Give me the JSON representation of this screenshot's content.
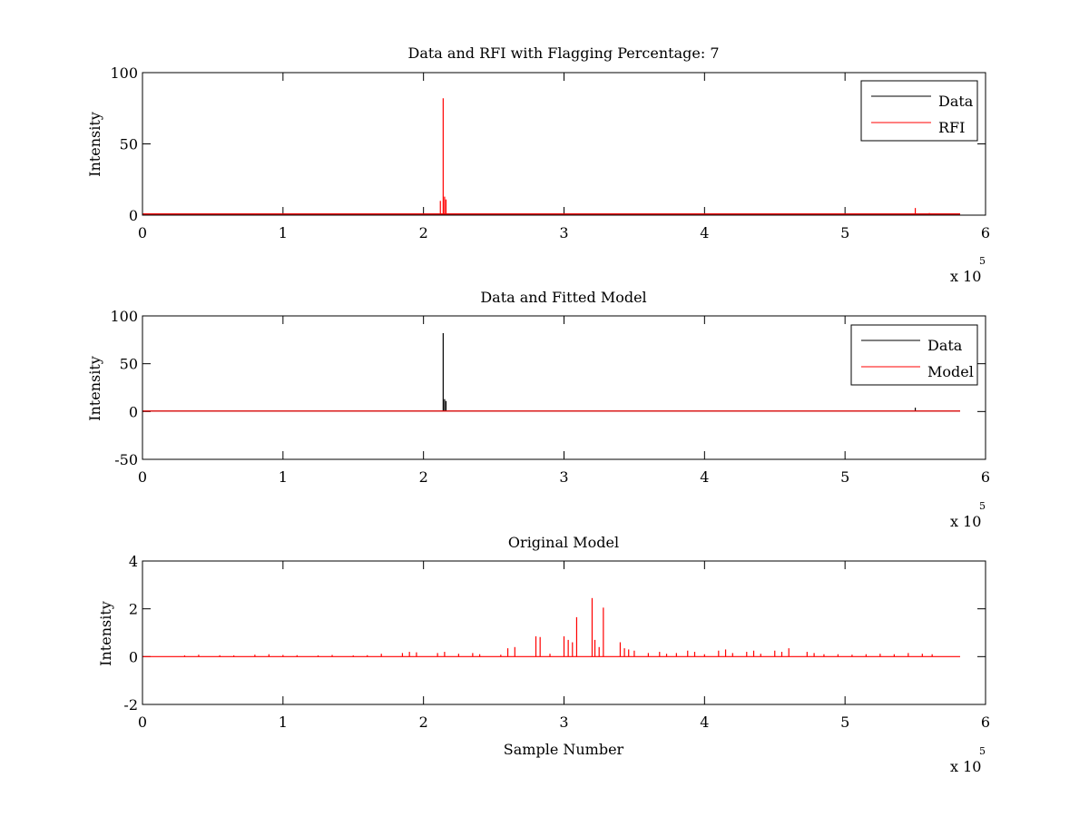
{
  "figure": {
    "background": "#ffffff"
  },
  "chart_data": [
    {
      "type": "line",
      "title": "Data and RFI with Flagging Percentage: 7",
      "xlabel": "",
      "ylabel": "Intensity",
      "xlim": [
        0,
        600000
      ],
      "ylim": [
        0,
        100
      ],
      "xticks": [
        0,
        1,
        2,
        3,
        4,
        5,
        6
      ],
      "yticks": [
        0,
        50,
        100
      ],
      "x_exponent_label": "x 10",
      "x_exponent_power": "5",
      "legend": {
        "position": "top-right",
        "entries": [
          "Data",
          "RFI"
        ]
      },
      "series": [
        {
          "name": "Data",
          "color": "#000000",
          "baseline": 0.8,
          "x": [],
          "y": []
        },
        {
          "name": "RFI",
          "color": "#ff0000",
          "baseline": 0.8,
          "x": [
            80000,
            130000,
            212000,
            214000,
            215000,
            216000,
            550000,
            560000
          ],
          "y": [
            1.2,
            1.0,
            10.0,
            82.0,
            13.0,
            11.0,
            5.0,
            1.5
          ]
        }
      ]
    },
    {
      "type": "line",
      "title": "Data and Fitted Model",
      "xlabel": "",
      "ylabel": "Intensity",
      "xlim": [
        0,
        600000
      ],
      "ylim": [
        -50,
        100
      ],
      "xticks": [
        0,
        1,
        2,
        3,
        4,
        5,
        6
      ],
      "yticks": [
        -50,
        0,
        50,
        100
      ],
      "x_exponent_label": "x 10",
      "x_exponent_power": "5",
      "legend": {
        "position": "top-right",
        "entries": [
          "Data",
          "Model"
        ]
      },
      "series": [
        {
          "name": "Data",
          "color": "#000000",
          "baseline": 0.5,
          "x": [
            214000,
            215000,
            216000,
            550000
          ],
          "y": [
            82.0,
            13.0,
            11.0,
            4.0
          ]
        },
        {
          "name": "Model",
          "color": "#ff0000",
          "baseline": 0.5,
          "x": [],
          "y": []
        }
      ]
    },
    {
      "type": "line",
      "title": "Original Model",
      "xlabel": "Sample Number",
      "ylabel": "Intensity",
      "xlim": [
        0,
        600000
      ],
      "ylim": [
        -2,
        4
      ],
      "xticks": [
        0,
        1,
        2,
        3,
        4,
        5,
        6
      ],
      "yticks": [
        -2,
        0,
        2,
        4
      ],
      "x_exponent_label": "x 10",
      "x_exponent_power": "5",
      "series": [
        {
          "name": "",
          "color": "#ff0000",
          "baseline": 0.0,
          "x": [
            30000,
            40000,
            55000,
            65000,
            80000,
            90000,
            100000,
            110000,
            125000,
            135000,
            150000,
            160000,
            170000,
            185000,
            190000,
            195000,
            210000,
            215000,
            225000,
            235000,
            240000,
            255000,
            260000,
            265000,
            280000,
            283000,
            290000,
            300000,
            303000,
            306000,
            309000,
            320000,
            322000,
            325000,
            328000,
            340000,
            343000,
            346000,
            350000,
            360000,
            368000,
            373000,
            380000,
            388000,
            393000,
            400000,
            410000,
            415000,
            420000,
            430000,
            435000,
            440000,
            450000,
            455000,
            460000,
            473000,
            478000,
            485000,
            495000,
            505000,
            515000,
            525000,
            535000,
            545000,
            555000,
            562000
          ],
          "y": [
            0.05,
            0.08,
            0.06,
            0.05,
            0.08,
            0.1,
            0.07,
            0.06,
            0.05,
            0.07,
            0.05,
            0.06,
            0.12,
            0.15,
            0.2,
            0.18,
            0.15,
            0.2,
            0.12,
            0.15,
            0.1,
            0.08,
            0.35,
            0.4,
            0.85,
            0.82,
            0.12,
            0.85,
            0.7,
            0.6,
            1.65,
            2.45,
            0.7,
            0.4,
            2.05,
            0.6,
            0.35,
            0.3,
            0.25,
            0.15,
            0.2,
            0.12,
            0.15,
            0.25,
            0.2,
            0.1,
            0.25,
            0.3,
            0.15,
            0.2,
            0.25,
            0.12,
            0.25,
            0.2,
            0.35,
            0.2,
            0.15,
            0.1,
            0.1,
            0.08,
            0.1,
            0.12,
            0.1,
            0.15,
            0.12,
            0.1
          ]
        }
      ]
    }
  ]
}
